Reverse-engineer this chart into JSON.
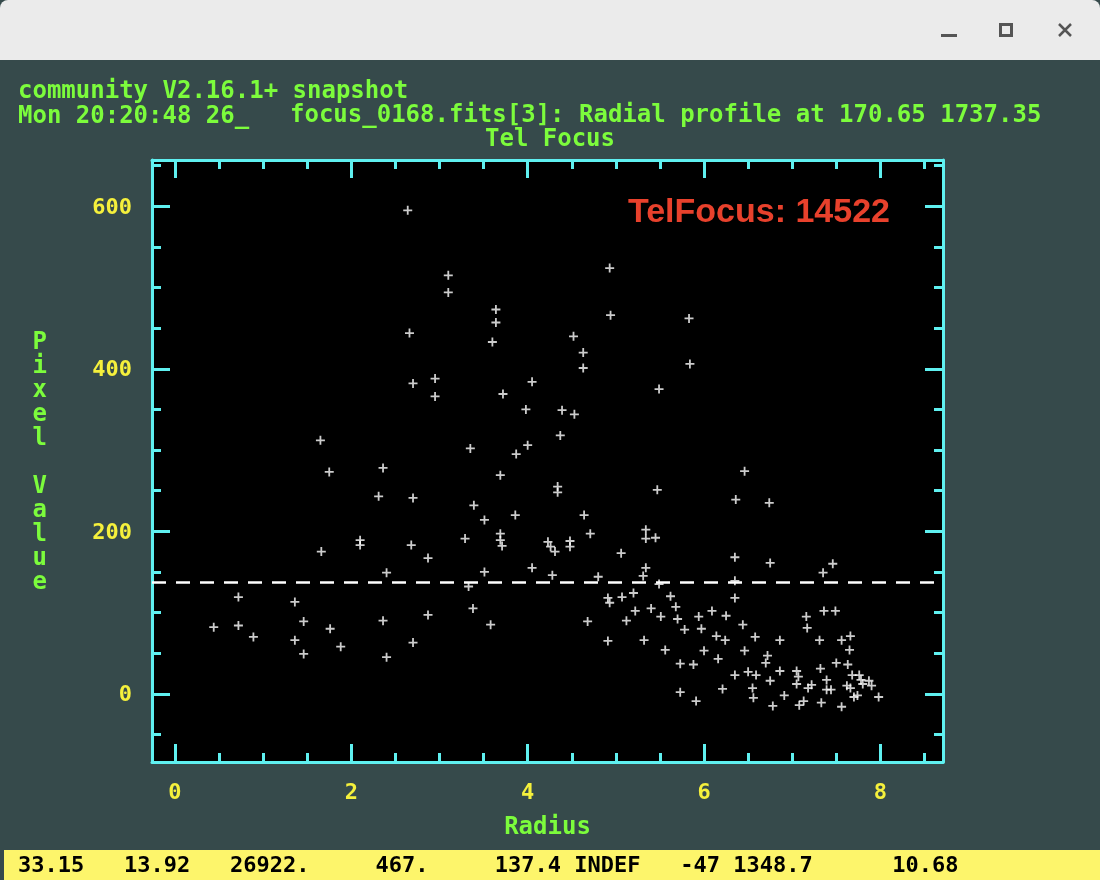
{
  "chart_data": {
    "type": "scatter",
    "title": "focus_0168.fits[3]: Radial profile at 170.65 1737.35",
    "subtitle": "Tel Focus",
    "xlabel": "Radius",
    "ylabel": "Pixel Value",
    "annotations": [
      "community V2.16.1+ snapshot",
      "Mon 20:20:48 26_",
      "TelFocus: 14522",
      "33.15   13.92   26922.     467.     137.4 INDEF   -47 1348.7      10.68"
    ],
    "series": [
      {
        "color": "#ffffff",
        "x": [
          0.44,
          0.72,
          0.72,
          0.89,
          1.36,
          1.36,
          1.46,
          1.46,
          1.65,
          1.66,
          1.75,
          1.76,
          1.88,
          2.1,
          2.1,
          2.31,
          2.36,
          2.36,
          2.4,
          2.4,
          2.64,
          2.66,
          2.7,
          2.7,
          2.68,
          2.7,
          2.87,
          2.87,
          2.95,
          2.95,
          3.1,
          3.1,
          3.29,
          3.35,
          3.39,
          3.33,
          3.38,
          3.51,
          3.51,
          3.58,
          3.64,
          3.64,
          3.6,
          3.69,
          3.69,
          3.69,
          3.71,
          3.72,
          3.86,
          3.87,
          3.98,
          4.0,
          4.05,
          4.05,
          4.23,
          4.26,
          4.28,
          4.31,
          4.34,
          4.34,
          4.39,
          4.37,
          4.48,
          4.48,
          4.53,
          4.52,
          4.63,
          4.63,
          4.64,
          4.68,
          4.71,
          4.8,
          4.93,
          4.94,
          4.91,
          4.91,
          4.93,
          5.06,
          5.07,
          5.12,
          5.2,
          5.22,
          5.31,
          5.32,
          5.34,
          5.34,
          5.45,
          5.34,
          5.47,
          5.49,
          5.4,
          5.51,
          5.56,
          5.49,
          5.62,
          5.68,
          5.7,
          5.73,
          5.73,
          5.78,
          5.83,
          5.84,
          5.91,
          5.88,
          5.94,
          5.97,
          6.0,
          6.09,
          6.14,
          6.16,
          6.21,
          6.24,
          6.25,
          6.35,
          6.35,
          6.36,
          6.35,
          6.35,
          6.44,
          6.46,
          6.46,
          6.5,
          6.55,
          6.56,
          6.58,
          6.59,
          6.7,
          6.72,
          6.74,
          6.75,
          6.78,
          6.86,
          6.86,
          6.91,
          6.75,
          7.05,
          7.07,
          7.05,
          7.08,
          7.13,
          7.16,
          7.17,
          7.18,
          7.22,
          7.31,
          7.32,
          7.33,
          7.35,
          7.36,
          7.39,
          7.39,
          7.44,
          7.46,
          7.49,
          7.5,
          7.56,
          7.56,
          7.62,
          7.63,
          7.66,
          7.65,
          7.66,
          7.68,
          7.7,
          7.74,
          7.76,
          7.78,
          7.8,
          7.87,
          7.9,
          7.98
        ],
        "values": [
          82,
          119,
          84,
          70,
          113,
          66,
          89,
          49,
          312,
          175,
          273,
          80,
          58,
          189,
          183,
          243,
          278,
          90,
          149,
          45,
          595,
          444,
          382,
          241,
          183,
          63,
          167,
          97,
          388,
          366,
          515,
          494,
          191,
          302,
          232,
          132,
          105,
          214,
          150,
          85,
          473,
          457,
          433,
          269,
          197,
          189,
          182,
          369,
          220,
          295,
          350,
          306,
          384,
          155,
          187,
          181,
          146,
          175,
          255,
          248,
          349,
          318,
          188,
          181,
          344,
          440,
          420,
          401,
          220,
          89,
          197,
          144,
          524,
          466,
          118,
          65,
          112,
          173,
          119,
          90,
          124,
          102,
          145,
          66,
          202,
          191,
          192,
          155,
          251,
          375,
          105,
          95,
          54,
          135,
          120,
          107,
          92,
          37,
          2,
          79,
          462,
          406,
          -9,
          36,
          95,
          80,
          53,
          102,
          71,
          43,
          6,
          66,
          96,
          139,
          118,
          239,
          168,
          23,
          85,
          274,
          53,
          27,
          7,
          -5,
          70,
          23,
          38,
          47,
          235,
          16,
          -15,
          66,
          28,
          -2,
          161,
          12,
          21,
          28,
          -14,
          -9,
          95,
          81,
          7,
          11,
          66,
          31,
          -11,
          149,
          102,
          17,
          5,
          5,
          160,
          102,
          38,
          66,
          -16,
          10,
          36,
          7,
          54,
          71,
          23,
          -4,
          -2,
          23,
          17,
          12,
          16,
          10,
          -4
        ]
      }
    ],
    "xlim": [
      -0.26,
      8.71
    ],
    "xticks": [
      0,
      2,
      4,
      6,
      8
    ],
    "ylim": [
      -84,
      657
    ],
    "yticks": [
      0,
      200,
      400,
      600
    ],
    "ref_lines": [
      {
        "axis": "y",
        "value": 137.4,
        "color": "#ffffff",
        "line_style": "dashed"
      }
    ],
    "marker": "cross",
    "grid": false
  }
}
